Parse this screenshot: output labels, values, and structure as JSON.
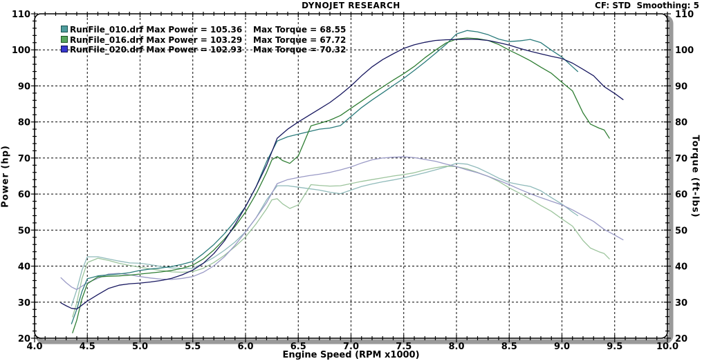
{
  "header": {
    "title": "DYNOJET RESEARCH",
    "settings": "CF: STD  Smoothing: 5"
  },
  "legend": {
    "rows": [
      {
        "left": "RunFile_010.drf Max Power = 105.36",
        "right": "Max Torque = 68.55",
        "swatch": "#4E9C9C",
        "swatch_border": "#17504F"
      },
      {
        "left": "RunFile_016.drf Max Power = 103.29",
        "right": "Max Torque = 67.72",
        "swatch": "#57A55C",
        "swatch_border": "#1C521F"
      },
      {
        "left": "RunFile_020.drf Max Power = 102.93",
        "right": "Max Torque = 70.32",
        "swatch": "#3737CE",
        "swatch_border": "#0E0E52"
      }
    ]
  },
  "chart_data": {
    "type": "line",
    "title": "DYNOJET RESEARCH",
    "xlabel": "Engine Speed (RPM x1000)",
    "ylabel_left": "Power (hp)",
    "ylabel_right": "Torque (ft-lbs)",
    "layout": {
      "x_range": [
        4.0,
        10.0
      ],
      "y_range": [
        20,
        110
      ],
      "x_ticks": [
        "4.0",
        "4.5",
        "5.0",
        "5.5",
        "6.0",
        "6.5",
        "7.0",
        "7.5",
        "8.0",
        "8.5",
        "9.0",
        "9.5",
        "10.0"
      ],
      "y_ticks": [
        "20",
        "30",
        "40",
        "50",
        "60",
        "70",
        "80",
        "90",
        "100",
        "110"
      ],
      "x_minor_step": 0.1,
      "y_minor_step": 2,
      "x_gridlines": [
        4.5,
        5.0,
        5.5,
        6.0,
        6.5,
        7.0,
        7.5,
        8.0,
        8.5,
        9.0,
        9.5
      ],
      "y_gridlines": [
        30,
        40,
        50,
        60,
        70,
        80,
        90,
        100
      ],
      "grid_dash": "3 3",
      "grid_color": "#000000",
      "border_color": "#000000",
      "shadow_color": "#9a9a9a",
      "legend_position": "top-left"
    },
    "series": [
      {
        "name": "RunFile_010.drf",
        "max_power": 105.36,
        "max_torque": 68.55,
        "power_color": "#2A7B7B",
        "torque_color": "#8FBABA",
        "rpm": [
          4.35,
          4.4,
          4.45,
          4.5,
          4.6,
          4.7,
          4.8,
          4.9,
          5.0,
          5.1,
          5.2,
          5.3,
          5.4,
          5.5,
          5.6,
          5.7,
          5.8,
          5.9,
          6.0,
          6.1,
          6.2,
          6.3,
          6.4,
          6.5,
          6.6,
          6.7,
          6.8,
          6.9,
          7.0,
          7.1,
          7.2,
          7.3,
          7.4,
          7.5,
          7.6,
          7.7,
          7.8,
          7.9,
          8.0,
          8.1,
          8.2,
          8.3,
          8.4,
          8.5,
          8.6,
          8.7,
          8.8,
          8.9,
          9.0,
          9.1,
          9.15
        ],
        "power": [
          24.0,
          28.0,
          33.0,
          36.5,
          37.3,
          37.6,
          37.8,
          38.2,
          38.8,
          39.2,
          39.5,
          39.9,
          40.5,
          41.3,
          43.5,
          46.0,
          49.0,
          52.5,
          56.5,
          62.0,
          69.0,
          74.7,
          75.9,
          76.6,
          77.3,
          78.0,
          78.3,
          79.0,
          81.5,
          84.0,
          86.1,
          88.1,
          90.1,
          92.1,
          94.3,
          96.6,
          99.0,
          101.5,
          104.4,
          105.36,
          105.0,
          104.2,
          103.0,
          102.3,
          102.5,
          102.9,
          102.0,
          99.9,
          98.0,
          95.3,
          94.0
        ],
        "torque": [
          29.0,
          33.4,
          38.9,
          42.6,
          42.6,
          42.0,
          41.4,
          40.9,
          40.8,
          40.4,
          39.9,
          39.5,
          39.4,
          39.4,
          40.8,
          42.4,
          44.4,
          46.7,
          49.5,
          53.4,
          58.4,
          62.3,
          62.3,
          61.9,
          61.5,
          61.1,
          60.5,
          60.1,
          61.1,
          62.1,
          62.8,
          63.4,
          63.9,
          64.5,
          65.2,
          65.9,
          66.7,
          67.5,
          68.55,
          68.3,
          67.3,
          65.9,
          64.4,
          63.2,
          62.6,
          62.1,
          60.9,
          59.0,
          57.2,
          55.0,
          54.0
        ]
      },
      {
        "name": "RunFile_016.drf",
        "max_power": 103.29,
        "max_torque": 67.72,
        "power_color": "#2E7D32",
        "torque_color": "#9CC49C",
        "rpm": [
          4.36,
          4.4,
          4.45,
          4.5,
          4.6,
          4.7,
          4.8,
          4.9,
          5.0,
          5.1,
          5.2,
          5.3,
          5.4,
          5.5,
          5.6,
          5.7,
          5.8,
          5.9,
          6.0,
          6.1,
          6.2,
          6.25,
          6.3,
          6.35,
          6.42,
          6.5,
          6.55,
          6.62,
          6.7,
          6.8,
          6.9,
          7.0,
          7.1,
          7.2,
          7.3,
          7.4,
          7.5,
          7.6,
          7.7,
          7.8,
          7.9,
          8.0,
          8.1,
          8.2,
          8.3,
          8.4,
          8.5,
          8.6,
          8.7,
          8.8,
          8.9,
          9.0,
          9.1,
          9.2,
          9.27,
          9.35,
          9.4,
          9.45
        ],
        "power": [
          21.5,
          25.0,
          31.0,
          35.1,
          37.0,
          37.2,
          37.3,
          37.5,
          37.8,
          38.1,
          38.4,
          38.8,
          39.4,
          40.3,
          42.0,
          44.5,
          47.5,
          51.0,
          55.0,
          60.0,
          66.0,
          69.5,
          70.4,
          69.3,
          68.5,
          70.6,
          74.0,
          78.9,
          79.6,
          80.5,
          81.8,
          83.8,
          85.8,
          87.8,
          89.7,
          91.6,
          93.4,
          95.4,
          97.8,
          99.9,
          101.9,
          103.0,
          103.29,
          103.1,
          102.6,
          101.5,
          99.9,
          98.5,
          97.0,
          95.2,
          93.5,
          91.0,
          88.6,
          82.5,
          79.4,
          78.3,
          77.8,
          75.5
        ],
        "torque": [
          25.9,
          29.8,
          36.6,
          41.0,
          42.2,
          41.6,
          40.8,
          40.2,
          39.7,
          39.2,
          38.8,
          38.4,
          38.3,
          38.5,
          39.4,
          41.0,
          43.0,
          45.4,
          48.1,
          51.7,
          55.9,
          58.4,
          58.7,
          57.3,
          56.0,
          57.0,
          59.3,
          62.6,
          62.4,
          62.2,
          62.3,
          62.9,
          63.5,
          64.0,
          64.5,
          65.0,
          65.4,
          65.9,
          66.7,
          67.3,
          67.72,
          67.6,
          67.0,
          66.0,
          64.9,
          63.5,
          61.7,
          60.2,
          58.6,
          56.8,
          55.2,
          53.1,
          51.1,
          47.1,
          45.0,
          44.0,
          43.5,
          42.0
        ]
      },
      {
        "name": "RunFile_020.drf",
        "max_power": 102.93,
        "max_torque": 70.32,
        "power_color": "#17175F",
        "torque_color": "#9A9AC6",
        "rpm": [
          4.25,
          4.3,
          4.35,
          4.4,
          4.5,
          4.6,
          4.7,
          4.8,
          4.9,
          5.0,
          5.1,
          5.2,
          5.3,
          5.4,
          5.5,
          5.6,
          5.7,
          5.8,
          5.9,
          6.0,
          6.1,
          6.2,
          6.3,
          6.4,
          6.5,
          6.6,
          6.7,
          6.8,
          6.9,
          7.0,
          7.1,
          7.2,
          7.3,
          7.4,
          7.5,
          7.6,
          7.7,
          7.8,
          7.9,
          8.0,
          8.1,
          8.2,
          8.3,
          8.4,
          8.5,
          8.6,
          8.7,
          8.8,
          8.9,
          9.0,
          9.1,
          9.2,
          9.3,
          9.4,
          9.5,
          9.58
        ],
        "power": [
          29.8,
          29.0,
          28.3,
          28.1,
          30.3,
          32.1,
          33.8,
          34.7,
          35.1,
          35.3,
          35.6,
          36.0,
          36.6,
          37.6,
          38.9,
          40.8,
          43.5,
          47.0,
          51.5,
          56.5,
          62.0,
          68.0,
          75.5,
          78.0,
          80.0,
          81.8,
          83.6,
          85.4,
          87.6,
          90.0,
          92.8,
          95.3,
          97.3,
          98.9,
          100.4,
          101.4,
          102.1,
          102.6,
          102.8,
          102.9,
          102.93,
          102.9,
          102.6,
          102.0,
          101.3,
          100.4,
          99.6,
          98.9,
          98.2,
          97.6,
          96.3,
          94.6,
          92.8,
          89.8,
          87.9,
          86.2
        ],
        "torque": [
          36.8,
          35.4,
          34.2,
          33.5,
          35.4,
          36.6,
          37.8,
          38.0,
          37.6,
          37.1,
          36.7,
          36.4,
          36.3,
          36.6,
          37.1,
          38.3,
          40.1,
          42.6,
          45.8,
          49.5,
          53.4,
          57.6,
          62.9,
          64.0,
          64.6,
          65.1,
          65.5,
          66.0,
          66.7,
          67.5,
          68.6,
          69.5,
          70.0,
          70.2,
          70.32,
          70.1,
          69.6,
          69.1,
          68.3,
          67.6,
          66.7,
          65.9,
          64.9,
          63.8,
          62.6,
          61.3,
          60.1,
          59.0,
          58.0,
          57.0,
          55.6,
          54.0,
          52.4,
          50.2,
          48.6,
          47.3
        ]
      }
    ]
  }
}
